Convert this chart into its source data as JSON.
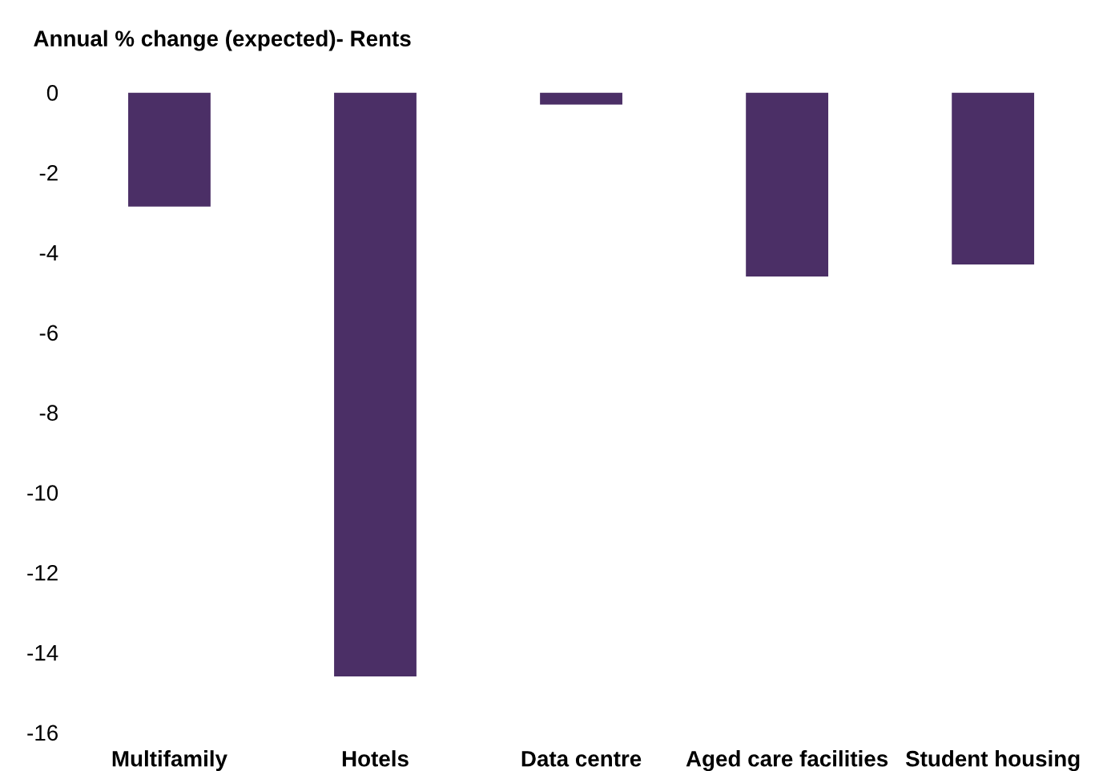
{
  "chart_data": {
    "type": "bar",
    "title": "Annual % change (expected)- Rents",
    "categories": [
      "Multifamily",
      "Hotels",
      "Data centre",
      "Aged care facilities",
      "Student housing"
    ],
    "values": [
      -2.85,
      -14.6,
      -0.3,
      -4.6,
      -4.3
    ],
    "color": "#4b2f66",
    "ylim": [
      -16,
      0
    ],
    "yticks": [
      -16,
      -14,
      -12,
      -10,
      -8,
      -6,
      -4,
      -2,
      0
    ],
    "grid": false,
    "legend": false
  }
}
